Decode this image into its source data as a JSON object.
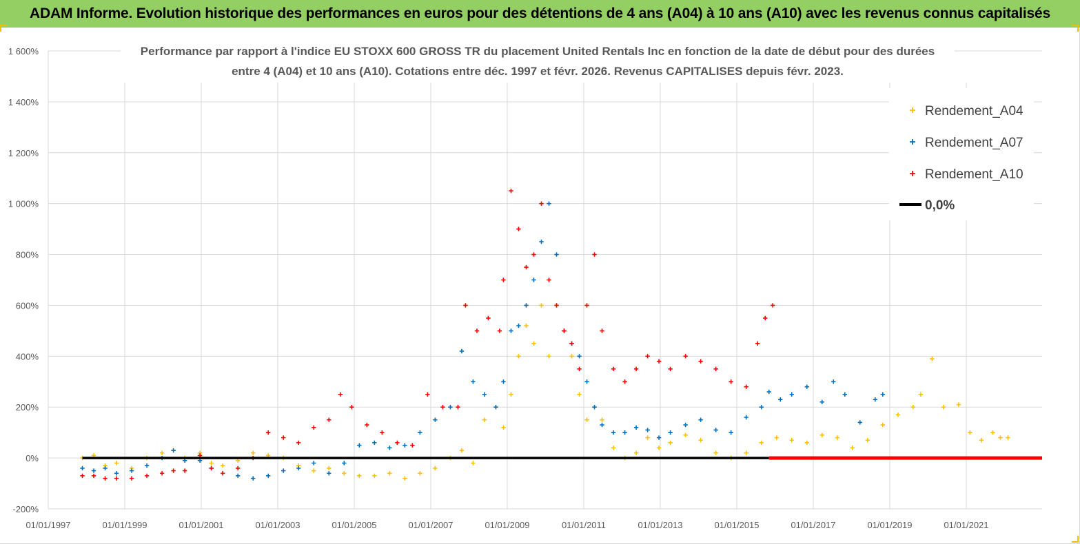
{
  "banner": {
    "title": "ADAM Informe. Evolution historique des performances en euros pour des détentions de 4 ans (A04) à 10 ans (A10) avec les revenus connus capitalisés",
    "background": "#93cf62"
  },
  "chart_data": {
    "type": "scatter",
    "title_line1": "Performance par rapport à l'indice EU STOXX 600 GROSS TR  du placement United Rentals Inc en fonction de la date de début pour des durées",
    "title_line2": "entre 4 (A04) et 10 ans (A10). Cotations entre déc. 1997 et févr. 2026. Revenus CAPITALISES depuis févr. 2023.",
    "y_unit": "%",
    "ylim": [
      -200,
      1600
    ],
    "y_ticks": [
      -200,
      0,
      200,
      400,
      600,
      800,
      1000,
      1200,
      1400,
      1600
    ],
    "y_tick_labels": [
      "-200%",
      "0%",
      "200%",
      "400%",
      "600%",
      "800%",
      "1 000%",
      "1 200%",
      "1 400%",
      "1 600%"
    ],
    "x_tick_labels": [
      "01/01/1997",
      "01/01/1999",
      "01/01/2001",
      "01/01/2003",
      "01/01/2005",
      "01/01/2007",
      "01/01/2009",
      "01/01/2011",
      "01/01/2013",
      "01/01/2015",
      "01/01/2017",
      "01/01/2019",
      "01/01/2021"
    ],
    "xlim": [
      1997.0,
      2023.2
    ],
    "grid": true,
    "legend_position": "top-right",
    "reference_line": {
      "name": "0,0%",
      "value": 0,
      "color": "#000000"
    },
    "series": [
      {
        "name": "Rendement_A04",
        "color": "#ffc000",
        "x": [
          1997.9,
          1998.2,
          1998.5,
          1998.8,
          1999.2,
          1999.6,
          2000.0,
          2000.3,
          2000.6,
          2001.0,
          2001.3,
          2001.6,
          2002.0,
          2002.4,
          2002.8,
          2003.2,
          2003.6,
          2004.0,
          2004.4,
          2004.8,
          2005.2,
          2005.6,
          2006.0,
          2006.4,
          2006.8,
          2007.2,
          2007.6,
          2007.9,
          2008.2,
          2008.5,
          2008.8,
          2009.0,
          2009.2,
          2009.4,
          2009.6,
          2009.8,
          2010.0,
          2010.2,
          2010.4,
          2010.6,
          2010.8,
          2011.0,
          2011.2,
          2011.4,
          2011.6,
          2011.9,
          2012.2,
          2012.5,
          2012.8,
          2013.1,
          2013.4,
          2013.8,
          2014.2,
          2014.6,
          2015.0,
          2015.4,
          2015.8,
          2016.2,
          2016.6,
          2017.0,
          2017.4,
          2017.8,
          2018.2,
          2018.6,
          2019.0,
          2019.4,
          2019.8,
          2020.0,
          2020.3,
          2020.6,
          2021.0,
          2021.3,
          2021.6,
          2021.9,
          2022.1,
          2022.3
        ],
        "y": [
          0,
          10,
          -30,
          -20,
          -40,
          0,
          20,
          30,
          0,
          20,
          -20,
          -30,
          -10,
          20,
          10,
          0,
          -30,
          -50,
          -40,
          -60,
          -70,
          -70,
          -60,
          -80,
          -60,
          -40,
          0,
          30,
          -20,
          150,
          200,
          120,
          250,
          400,
          520,
          450,
          600,
          400,
          600,
          500,
          400,
          250,
          150,
          200,
          150,
          40,
          0,
          20,
          80,
          40,
          60,
          90,
          70,
          20,
          0,
          20,
          60,
          80,
          70,
          60,
          90,
          80,
          40,
          70,
          130,
          170,
          200,
          250,
          390,
          200,
          210,
          100,
          70,
          100,
          80,
          80
        ]
      },
      {
        "name": "Rendement_A07",
        "color": "#0070c0",
        "x": [
          1997.9,
          1998.2,
          1998.5,
          1998.8,
          1999.2,
          1999.6,
          2000.0,
          2000.3,
          2000.6,
          2001.0,
          2001.3,
          2001.6,
          2002.0,
          2002.4,
          2002.8,
          2003.2,
          2003.6,
          2004.0,
          2004.4,
          2004.8,
          2005.2,
          2005.6,
          2006.0,
          2006.4,
          2006.8,
          2007.2,
          2007.6,
          2007.9,
          2008.2,
          2008.5,
          2008.8,
          2009.0,
          2009.2,
          2009.4,
          2009.6,
          2009.8,
          2010.0,
          2010.2,
          2010.4,
          2010.6,
          2010.8,
          2011.0,
          2011.2,
          2011.4,
          2011.6,
          2011.9,
          2012.2,
          2012.5,
          2012.8,
          2013.1,
          2013.4,
          2013.8,
          2014.2,
          2014.6,
          2015.0,
          2015.4,
          2015.8,
          2016.0,
          2016.3,
          2016.6,
          2017.0,
          2017.4,
          2017.7,
          2018.0,
          2018.4,
          2018.8,
          2019.0
        ],
        "y": [
          -40,
          -50,
          -40,
          -60,
          -50,
          -30,
          0,
          30,
          -10,
          -10,
          -40,
          -60,
          -70,
          -80,
          -70,
          -50,
          -40,
          -20,
          -60,
          -20,
          50,
          60,
          40,
          50,
          100,
          150,
          200,
          420,
          300,
          250,
          200,
          300,
          500,
          520,
          600,
          700,
          850,
          1000,
          800,
          500,
          450,
          400,
          300,
          200,
          130,
          100,
          100,
          120,
          110,
          80,
          100,
          130,
          150,
          110,
          100,
          160,
          200,
          260,
          230,
          250,
          280,
          220,
          300,
          250,
          140,
          230,
          250
        ]
      },
      {
        "name": "Rendement_A10",
        "color": "#ff0000",
        "x": [
          1997.9,
          1998.2,
          1998.5,
          1998.8,
          1999.2,
          1999.6,
          2000.0,
          2000.3,
          2000.6,
          2001.0,
          2001.3,
          2001.6,
          2002.0,
          2002.4,
          2002.8,
          2003.2,
          2003.6,
          2004.0,
          2004.4,
          2004.7,
          2005.0,
          2005.4,
          2005.8,
          2006.2,
          2006.6,
          2007.0,
          2007.4,
          2007.8,
          2008.0,
          2008.3,
          2008.6,
          2008.9,
          2009.0,
          2009.2,
          2009.4,
          2009.6,
          2009.8,
          2010.0,
          2010.2,
          2010.4,
          2010.6,
          2010.8,
          2011.0,
          2011.2,
          2011.4,
          2011.6,
          2011.9,
          2012.2,
          2012.5,
          2012.8,
          2013.1,
          2013.4,
          2013.8,
          2014.2,
          2014.6,
          2015.0,
          2015.4,
          2015.7,
          2015.9,
          2016.1
        ],
        "y": [
          -70,
          -70,
          -80,
          -80,
          -80,
          -70,
          -60,
          -50,
          -50,
          10,
          -40,
          -60,
          -40,
          0,
          100,
          80,
          60,
          120,
          150,
          250,
          200,
          130,
          100,
          60,
          50,
          250,
          200,
          200,
          600,
          500,
          550,
          500,
          700,
          1050,
          900,
          750,
          800,
          1000,
          700,
          600,
          500,
          450,
          350,
          600,
          800,
          500,
          350,
          300,
          350,
          400,
          380,
          350,
          400,
          380,
          350,
          300,
          280,
          450,
          550,
          600
        ]
      }
    ]
  }
}
